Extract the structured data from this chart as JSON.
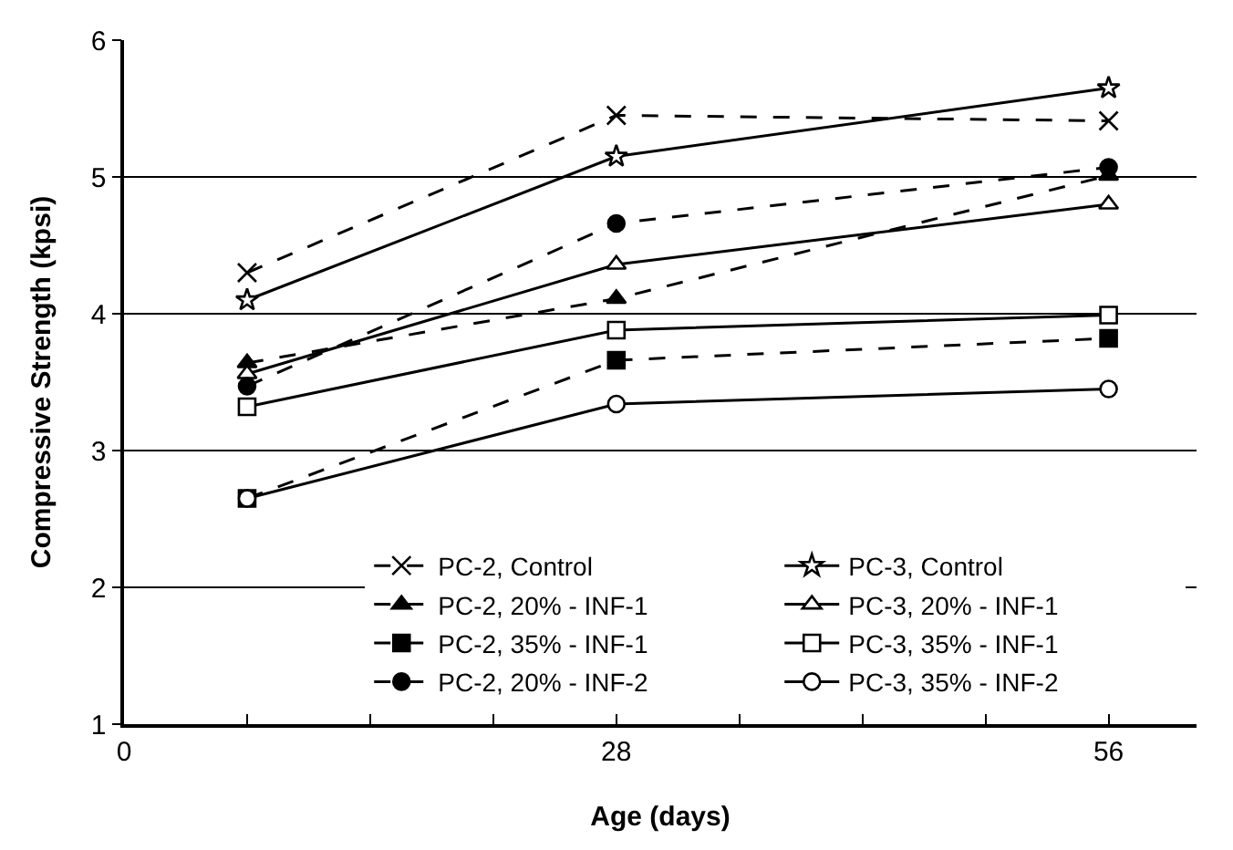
{
  "chart_data": {
    "type": "line",
    "xlabel": "Age (days)",
    "ylabel": "Compressive Strength (kpsi)",
    "x": [
      7,
      28,
      56
    ],
    "series": [
      {
        "name": "PC-2, Control",
        "color": "#000000",
        "marker": "cross",
        "line_style": "dashed",
        "values": [
          4.3,
          5.45,
          5.41
        ]
      },
      {
        "name": "PC-3, Control",
        "color": "#000000",
        "marker": "star",
        "line_style": "solid",
        "values": [
          4.1,
          5.15,
          5.65
        ]
      },
      {
        "name": "PC-2, 20% - INF-1",
        "color": "#000000",
        "marker": "triangle",
        "line_style": "dashed",
        "values": [
          3.64,
          4.11,
          5.01
        ]
      },
      {
        "name": "PC-3, 20% - INF-1",
        "color": "#000000",
        "marker": "triangle",
        "line_style": "solid",
        "values": [
          3.56,
          4.36,
          4.8
        ]
      },
      {
        "name": "PC-2, 35% - INF-1",
        "color": "#000000",
        "marker": "square",
        "line_style": "dashed",
        "values": [
          2.65,
          3.66,
          3.82
        ]
      },
      {
        "name": "PC-3, 35% - INF-1",
        "color": "#000000",
        "marker": "square",
        "line_style": "solid",
        "values": [
          3.32,
          3.88,
          3.99
        ]
      },
      {
        "name": "PC-2, 20% - INF-2",
        "color": "#000000",
        "marker": "circle",
        "line_style": "dashed",
        "values": [
          3.47,
          4.66,
          5.07
        ]
      },
      {
        "name": "PC-3, 35% - INF-2",
        "color": "#000000",
        "marker": "circle",
        "line_style": "solid",
        "values": [
          2.65,
          3.34,
          3.45
        ]
      }
    ],
    "xlim": [
      0,
      61
    ],
    "xticks": [
      0,
      {
        "value": 7,
        "label": null
      },
      {
        "value": 14,
        "label": null
      },
      {
        "value": 21,
        "label": null
      },
      28,
      {
        "value": 35,
        "label": null
      },
      {
        "value": 42,
        "label": null
      },
      {
        "value": 49,
        "label": null
      },
      56
    ],
    "ylim": [
      1,
      6
    ],
    "yticks": [
      1,
      2,
      3,
      4,
      5,
      6
    ],
    "grid": "y",
    "legend": "bottom right"
  }
}
